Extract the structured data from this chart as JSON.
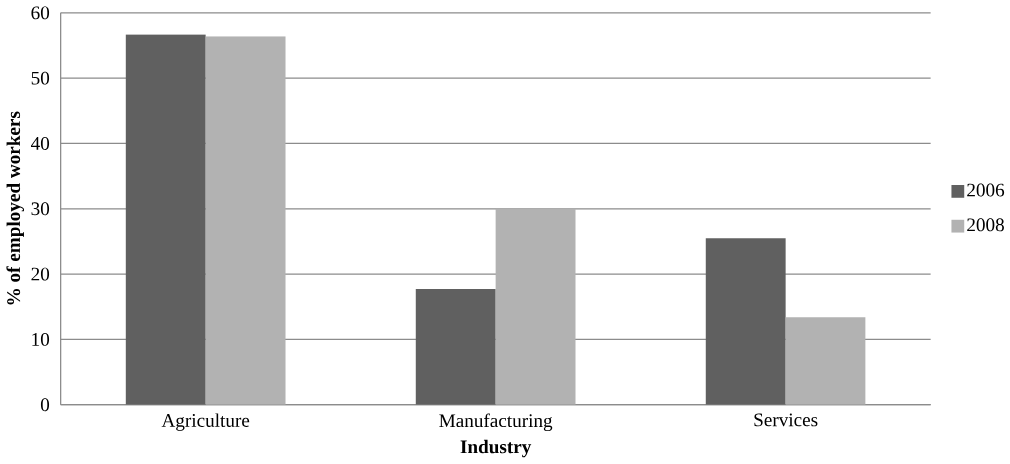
{
  "chart_data": {
    "type": "bar",
    "xlabel": "Industry",
    "ylabel": "% of employed workers",
    "categories": [
      "Agriculture",
      "Manufacturing",
      "Services"
    ],
    "series": [
      {
        "name": "2006",
        "color": "#606060",
        "values": [
          56.7,
          17.7,
          25.5
        ]
      },
      {
        "name": "2008",
        "color": "#b2b2b2",
        "values": [
          56.4,
          30.0,
          13.4
        ]
      }
    ],
    "ylim": [
      0,
      60
    ],
    "yticks": [
      0,
      10,
      20,
      30,
      40,
      50,
      60
    ],
    "grid": "y",
    "legend": "right"
  }
}
